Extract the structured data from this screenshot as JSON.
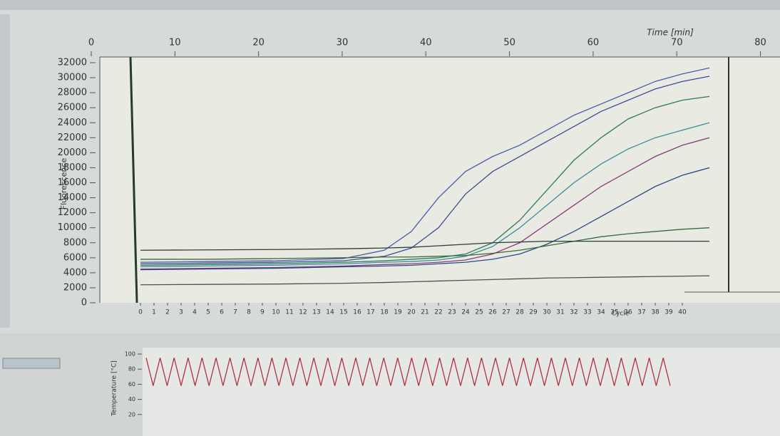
{
  "chart_data": [
    {
      "type": "line",
      "x_label": "Cycle",
      "y_label": "Fluorescence",
      "x2_label": "Time [min]",
      "x": [
        0,
        5,
        10,
        15,
        18,
        20,
        22,
        24,
        26,
        28,
        30,
        32,
        34,
        36,
        38,
        40,
        42
      ],
      "series": [
        {
          "color": "#4a5ab0",
          "values": [
            5400,
            5500,
            5600,
            5900,
            7000,
            9500,
            14000,
            17500,
            19500,
            21000,
            23000,
            25000,
            26500,
            28000,
            29500,
            30500,
            31300
          ]
        },
        {
          "color": "#3d4a9a",
          "values": [
            5200,
            5300,
            5400,
            5600,
            6200,
            7300,
            10000,
            14500,
            17500,
            19500,
            21500,
            23500,
            25500,
            27000,
            28500,
            29500,
            30200
          ]
        },
        {
          "color": "#2a7a5a",
          "values": [
            5000,
            5100,
            5200,
            5400,
            5600,
            5800,
            6000,
            6500,
            8000,
            11000,
            15000,
            19000,
            22000,
            24500,
            26000,
            27000,
            27500
          ]
        },
        {
          "color": "#3c8ca0",
          "values": [
            4800,
            4900,
            5000,
            5200,
            5400,
            5500,
            5700,
            6200,
            7500,
            10000,
            13000,
            16000,
            18500,
            20500,
            22000,
            23000,
            24000
          ]
        },
        {
          "color": "#8a3a7a",
          "values": [
            4500,
            4600,
            4700,
            4900,
            5100,
            5200,
            5400,
            5700,
            6500,
            8000,
            10500,
            13000,
            15500,
            17500,
            19500,
            21000,
            22000
          ]
        },
        {
          "color": "#2a4a8a",
          "values": [
            4400,
            4500,
            4600,
            4800,
            4900,
            5000,
            5200,
            5400,
            5800,
            6500,
            7800,
            9500,
            11500,
            13500,
            15500,
            17000,
            18000
          ]
        },
        {
          "color": "#3a6a3a",
          "values": [
            5800,
            5800,
            5900,
            6000,
            6100,
            6100,
            6200,
            6300,
            6600,
            7000,
            7600,
            8200,
            8800,
            9200,
            9500,
            9800,
            10000
          ]
        },
        {
          "color": "#2e3e3e",
          "values": [
            7000,
            7050,
            7100,
            7200,
            7300,
            7400,
            7600,
            7800,
            8000,
            8100,
            8200,
            8200,
            8200,
            8200,
            8200,
            8200,
            8200
          ]
        },
        {
          "color": "#505050",
          "values": [
            2400,
            2450,
            2500,
            2600,
            2700,
            2800,
            2900,
            3000,
            3100,
            3200,
            3300,
            3350,
            3400,
            3450,
            3500,
            3550,
            3600
          ]
        }
      ],
      "xlim": [
        -3,
        47
      ],
      "xticks": [
        0,
        1,
        2,
        3,
        4,
        5,
        6,
        7,
        8,
        9,
        10,
        11,
        12,
        13,
        14,
        15,
        16,
        17,
        18,
        19,
        20,
        21,
        22,
        23,
        24,
        25,
        26,
        27,
        28,
        29,
        30,
        31,
        32,
        33,
        34,
        35,
        36,
        37,
        38,
        39,
        40
      ],
      "x2lim": [
        0,
        82
      ],
      "x2ticks": [
        0,
        10,
        20,
        30,
        40,
        50,
        60,
        70,
        80
      ],
      "ylim": [
        0,
        32000
      ],
      "yticks": [
        0,
        2000,
        4000,
        6000,
        8000,
        10000,
        12000,
        14000,
        16000,
        18000,
        20000,
        22000,
        24000,
        26000,
        28000,
        30000,
        32000
      ]
    },
    {
      "type": "line",
      "y_label": "Temperature [°C]",
      "color": "#b03040",
      "values": [
        95,
        58,
        95,
        58,
        95,
        58,
        95,
        58,
        95,
        58,
        95,
        58,
        95,
        58,
        95,
        58,
        95,
        58,
        95,
        58,
        95,
        58,
        95,
        58,
        95,
        58,
        95,
        58,
        95,
        58,
        95,
        58,
        95,
        58,
        95,
        58,
        95,
        58,
        95,
        58,
        95,
        58,
        95,
        58,
        95,
        58,
        95,
        58,
        95,
        58,
        95,
        58,
        95,
        58,
        95,
        58,
        95,
        58,
        95,
        58,
        95,
        58,
        95,
        58,
        95,
        58,
        95,
        58,
        95,
        58,
        95,
        58,
        95,
        58,
        95,
        58
      ],
      "ylim": [
        0,
        100
      ],
      "yticks": [
        20,
        40,
        60,
        80,
        100
      ]
    }
  ]
}
